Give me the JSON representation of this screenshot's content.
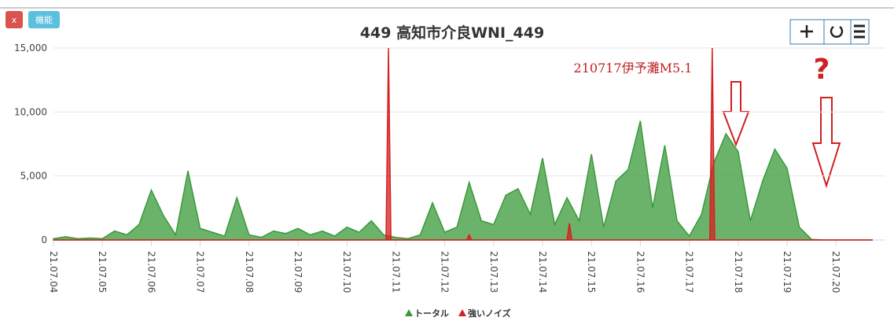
{
  "ui": {
    "buttons": [
      "x",
      "機能"
    ]
  },
  "chart_data": {
    "type": "area",
    "title": "449 高知市介良WNI_449",
    "annotations": [
      "210717伊予灘M5.1",
      "?"
    ],
    "xlim": [
      4,
      21
    ],
    "xticks": [
      {
        "value": 4,
        "label": "21.07.04"
      },
      {
        "value": 5,
        "label": "21.07.05"
      },
      {
        "value": 6,
        "label": "21.07.06"
      },
      {
        "value": 7,
        "label": "21.07.07"
      },
      {
        "value": 8,
        "label": "21.07.08"
      },
      {
        "value": 9,
        "label": "21.07.09"
      },
      {
        "value": 10,
        "label": "21.07.10"
      },
      {
        "value": 11,
        "label": "21.07.11"
      },
      {
        "value": 12,
        "label": "21.07.12"
      },
      {
        "value": 13,
        "label": "21.07.13"
      },
      {
        "value": 14,
        "label": "21.07.14"
      },
      {
        "value": 15,
        "label": "21.07.15"
      },
      {
        "value": 16,
        "label": "21.07.16"
      },
      {
        "value": 17,
        "label": "21.07.17"
      },
      {
        "value": 18,
        "label": "21.07.18"
      },
      {
        "value": 19,
        "label": "21.07.19"
      },
      {
        "value": 20,
        "label": "21.07.20"
      }
    ],
    "ylim": [
      0,
      15000
    ],
    "yticks": [
      0,
      {
        "value": 5000,
        "label": "5,000"
      },
      {
        "value": 10000,
        "label": "10,000"
      },
      {
        "value": 15000,
        "label": "15,000"
      }
    ],
    "grid": true,
    "series": [
      {
        "name": "トータル",
        "color": "#3a9a3a",
        "x": [
          4.0,
          4.25,
          4.5,
          4.75,
          5.0,
          5.25,
          5.5,
          5.75,
          6.0,
          6.25,
          6.5,
          6.75,
          7.0,
          7.25,
          7.5,
          7.75,
          8.0,
          8.25,
          8.5,
          8.75,
          9.0,
          9.25,
          9.5,
          9.75,
          10.0,
          10.25,
          10.5,
          10.75,
          11.0,
          11.25,
          11.5,
          11.75,
          12.0,
          12.25,
          12.5,
          12.75,
          13.0,
          13.25,
          13.5,
          13.75,
          14.0,
          14.25,
          14.5,
          14.75,
          15.0,
          15.25,
          15.5,
          15.75,
          16.0,
          16.25,
          16.5,
          16.75,
          17.0,
          17.25,
          17.5,
          17.75,
          18.0,
          18.25,
          18.5,
          18.75,
          19.0,
          19.25,
          19.5,
          19.75,
          20.0,
          20.25,
          20.5,
          20.75
        ],
        "values": [
          100,
          250,
          100,
          150,
          100,
          700,
          400,
          1200,
          3900,
          1900,
          400,
          5400,
          900,
          600,
          300,
          3300,
          400,
          200,
          700,
          500,
          900,
          400,
          700,
          300,
          1000,
          600,
          1500,
          400,
          200,
          100,
          400,
          2900,
          600,
          1000,
          4500,
          1500,
          1200,
          3500,
          4000,
          2000,
          6400,
          1200,
          3300,
          1500,
          6700,
          1000,
          4600,
          5500,
          9300,
          2500,
          7400,
          1500,
          300,
          2000,
          6000,
          8300,
          6900,
          1500,
          4600,
          7100,
          5600,
          1000,
          50,
          0,
          0,
          0,
          0,
          0
        ]
      },
      {
        "name": "強いノイズ",
        "color": "#d62020",
        "x": [
          4.0,
          10.8,
          10.85,
          10.9,
          12.45,
          12.5,
          12.55,
          14.5,
          14.55,
          14.6,
          17.42,
          17.47,
          17.52,
          20.75
        ],
        "values": [
          0,
          0,
          15000,
          0,
          0,
          400,
          0,
          0,
          1300,
          0,
          0,
          15000,
          0,
          0
        ]
      }
    ]
  }
}
